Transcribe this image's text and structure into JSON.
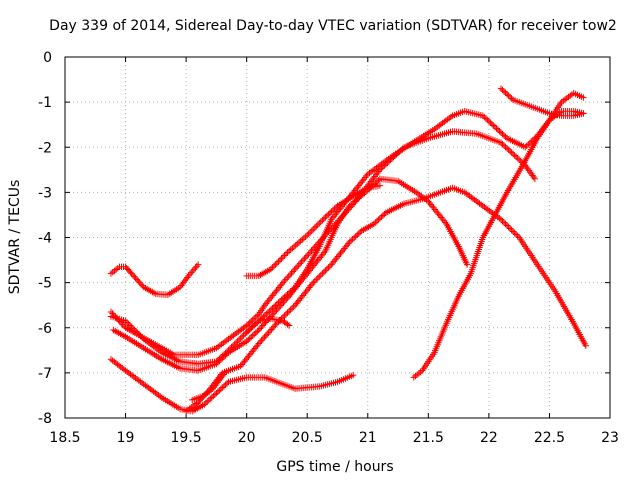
{
  "chart_data": {
    "type": "scatter",
    "title": "Day 339 of 2014, Sidereal Day-to-day VTEC variation (SDTVAR) for receiver tow2",
    "xlabel": "GPS time / hours",
    "ylabel": "SDTVAR / TECUs",
    "xlim": [
      18.5,
      23
    ],
    "ylim": [
      -8,
      0
    ],
    "xticks": [
      "18.5",
      "19",
      "19.5",
      "20",
      "20.5",
      "21",
      "21.5",
      "22",
      "22.5",
      "23"
    ],
    "yticks": [
      "0",
      "-1",
      "-2",
      "-3",
      "-4",
      "-5",
      "-6",
      "-7",
      "-8"
    ],
    "grid": true,
    "marker": "+",
    "color": "#ff0000",
    "series": [
      {
        "name": "s1",
        "points": [
          [
            18.88,
            -4.8
          ],
          [
            18.95,
            -4.65
          ],
          [
            19.0,
            -4.65
          ],
          [
            19.05,
            -4.8
          ],
          [
            19.15,
            -5.1
          ],
          [
            19.25,
            -5.25
          ],
          [
            19.35,
            -5.27
          ],
          [
            19.45,
            -5.1
          ],
          [
            19.52,
            -4.85
          ],
          [
            19.6,
            -4.6
          ]
        ]
      },
      {
        "name": "s2",
        "points": [
          [
            18.88,
            -5.65
          ],
          [
            19.0,
            -6.0
          ],
          [
            19.2,
            -6.3
          ],
          [
            19.4,
            -6.6
          ],
          [
            19.6,
            -6.6
          ],
          [
            19.75,
            -6.45
          ],
          [
            19.85,
            -6.25
          ],
          [
            20.0,
            -5.95
          ],
          [
            20.1,
            -5.7
          ],
          [
            20.15,
            -5.5
          ],
          [
            20.3,
            -5.0
          ],
          [
            20.5,
            -4.4
          ],
          [
            20.7,
            -3.8
          ],
          [
            20.9,
            -3.2
          ],
          [
            21.1,
            -2.5
          ],
          [
            21.3,
            -2.0
          ],
          [
            21.5,
            -1.8
          ],
          [
            21.7,
            -1.65
          ],
          [
            21.9,
            -1.7
          ],
          [
            22.1,
            -1.9
          ],
          [
            22.3,
            -2.4
          ],
          [
            22.38,
            -2.7
          ]
        ]
      },
      {
        "name": "s3",
        "points": [
          [
            18.88,
            -5.75
          ],
          [
            19.0,
            -5.85
          ],
          [
            19.15,
            -6.25
          ],
          [
            19.3,
            -6.55
          ],
          [
            19.45,
            -6.75
          ],
          [
            19.6,
            -6.8
          ],
          [
            19.75,
            -6.75
          ],
          [
            19.85,
            -6.5
          ],
          [
            20.0,
            -6.1
          ],
          [
            20.2,
            -5.6
          ],
          [
            20.4,
            -5.1
          ],
          [
            20.5,
            -4.7
          ],
          [
            20.6,
            -4.2
          ],
          [
            20.7,
            -3.6
          ],
          [
            20.85,
            -3.1
          ],
          [
            21.0,
            -2.6
          ],
          [
            21.2,
            -2.2
          ],
          [
            21.4,
            -1.85
          ],
          [
            21.55,
            -1.6
          ],
          [
            21.7,
            -1.3
          ],
          [
            21.8,
            -1.2
          ],
          [
            21.95,
            -1.3
          ],
          [
            22.05,
            -1.55
          ],
          [
            22.15,
            -1.8
          ],
          [
            22.3,
            -2.0
          ],
          [
            22.4,
            -1.75
          ],
          [
            22.5,
            -1.4
          ],
          [
            22.6,
            -1.2
          ],
          [
            22.7,
            -1.2
          ],
          [
            22.78,
            -1.25
          ]
        ]
      },
      {
        "name": "s4",
        "points": [
          [
            18.9,
            -6.05
          ],
          [
            19.0,
            -6.2
          ],
          [
            19.15,
            -6.45
          ],
          [
            19.3,
            -6.7
          ],
          [
            19.45,
            -6.9
          ],
          [
            19.6,
            -6.95
          ],
          [
            19.75,
            -6.8
          ],
          [
            19.85,
            -6.55
          ],
          [
            20.0,
            -6.3
          ],
          [
            20.1,
            -6.05
          ],
          [
            20.2,
            -5.75
          ],
          [
            20.35,
            -5.3
          ],
          [
            20.5,
            -4.8
          ],
          [
            20.65,
            -4.3
          ],
          [
            20.75,
            -3.7
          ],
          [
            20.85,
            -3.3
          ],
          [
            21.0,
            -2.95
          ],
          [
            21.1,
            -2.7
          ],
          [
            21.25,
            -2.75
          ],
          [
            21.4,
            -3.0
          ],
          [
            21.5,
            -3.2
          ],
          [
            21.65,
            -3.7
          ],
          [
            21.75,
            -4.2
          ],
          [
            21.82,
            -4.6
          ]
        ]
      },
      {
        "name": "s5",
        "points": [
          [
            18.88,
            -6.7
          ],
          [
            19.0,
            -6.95
          ],
          [
            19.15,
            -7.25
          ],
          [
            19.3,
            -7.55
          ],
          [
            19.45,
            -7.8
          ],
          [
            19.55,
            -7.85
          ],
          [
            19.65,
            -7.7
          ],
          [
            19.75,
            -7.45
          ],
          [
            19.85,
            -7.2
          ],
          [
            20.0,
            -7.1
          ],
          [
            20.15,
            -7.1
          ],
          [
            20.25,
            -7.2
          ],
          [
            20.4,
            -7.35
          ],
          [
            20.6,
            -7.3
          ],
          [
            20.75,
            -7.2
          ],
          [
            20.88,
            -7.05
          ]
        ]
      },
      {
        "name": "s6",
        "points": [
          [
            19.5,
            -7.85
          ],
          [
            19.6,
            -7.65
          ],
          [
            19.7,
            -7.35
          ],
          [
            19.8,
            -7.0
          ],
          [
            19.95,
            -6.85
          ],
          [
            20.1,
            -6.35
          ],
          [
            20.25,
            -5.9
          ],
          [
            20.4,
            -5.5
          ],
          [
            20.55,
            -5.0
          ],
          [
            20.7,
            -4.6
          ],
          [
            20.85,
            -4.1
          ],
          [
            20.95,
            -3.85
          ],
          [
            21.05,
            -3.7
          ],
          [
            21.15,
            -3.45
          ],
          [
            21.3,
            -3.25
          ],
          [
            21.45,
            -3.15
          ],
          [
            21.6,
            -3.0
          ],
          [
            21.7,
            -2.9
          ],
          [
            21.8,
            -3.0
          ],
          [
            21.95,
            -3.3
          ],
          [
            22.1,
            -3.6
          ],
          [
            22.25,
            -4.0
          ],
          [
            22.4,
            -4.6
          ],
          [
            22.55,
            -5.2
          ],
          [
            22.7,
            -5.9
          ],
          [
            22.8,
            -6.4
          ]
        ]
      },
      {
        "name": "s7",
        "points": [
          [
            19.55,
            -7.6
          ],
          [
            19.65,
            -7.5
          ],
          [
            19.72,
            -7.35
          ],
          [
            19.82,
            -7.0
          ]
        ]
      },
      {
        "name": "s8",
        "points": [
          [
            20.0,
            -4.85
          ],
          [
            20.1,
            -4.85
          ],
          [
            20.2,
            -4.7
          ],
          [
            20.35,
            -4.3
          ],
          [
            20.5,
            -3.95
          ],
          [
            20.65,
            -3.55
          ],
          [
            20.75,
            -3.3
          ],
          [
            20.9,
            -3.05
          ],
          [
            21.0,
            -2.9
          ],
          [
            21.1,
            -2.85
          ]
        ]
      },
      {
        "name": "s9",
        "points": [
          [
            20.0,
            -6.1
          ],
          [
            20.1,
            -5.85
          ],
          [
            20.2,
            -5.8
          ],
          [
            20.3,
            -5.85
          ],
          [
            20.35,
            -5.95
          ]
        ]
      },
      {
        "name": "s10",
        "points": [
          [
            21.38,
            -7.1
          ],
          [
            21.45,
            -6.95
          ],
          [
            21.55,
            -6.55
          ],
          [
            21.65,
            -5.9
          ],
          [
            21.75,
            -5.3
          ],
          [
            21.85,
            -4.8
          ],
          [
            21.95,
            -4.0
          ],
          [
            22.05,
            -3.5
          ],
          [
            22.15,
            -3.0
          ],
          [
            22.3,
            -2.3
          ],
          [
            22.4,
            -1.8
          ],
          [
            22.5,
            -1.4
          ],
          [
            22.6,
            -1.0
          ],
          [
            22.7,
            -0.8
          ],
          [
            22.78,
            -0.9
          ]
        ]
      },
      {
        "name": "s11",
        "points": [
          [
            22.1,
            -0.7
          ],
          [
            22.2,
            -0.95
          ],
          [
            22.3,
            -1.05
          ],
          [
            22.4,
            -1.15
          ],
          [
            22.5,
            -1.25
          ],
          [
            22.6,
            -1.3
          ],
          [
            22.7,
            -1.3
          ],
          [
            22.78,
            -1.25
          ]
        ]
      }
    ]
  }
}
